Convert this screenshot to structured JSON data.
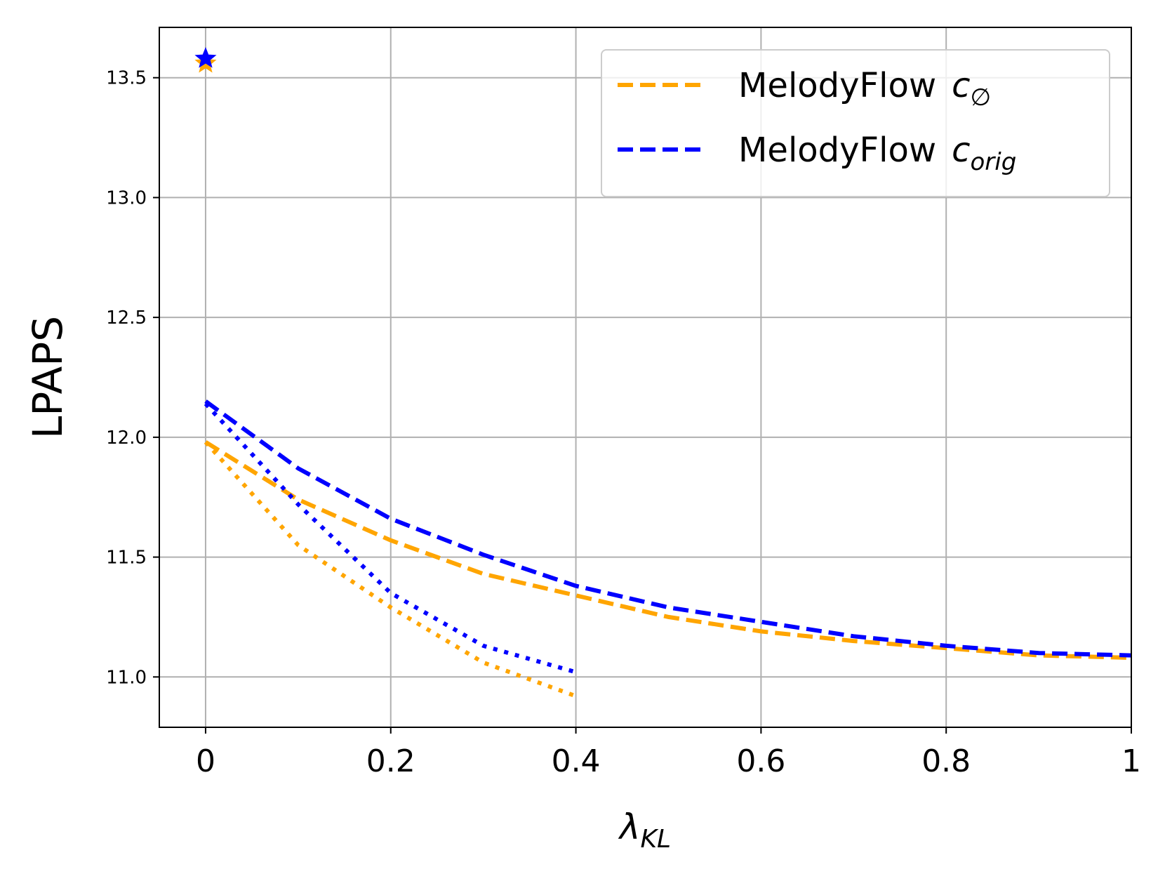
{
  "chart_data": {
    "type": "line",
    "xlabel": "λ",
    "xlabel_sub": "KL",
    "ylabel": "LPAPS",
    "xlim": [
      -0.05,
      1.0
    ],
    "ylim": [
      10.79,
      13.71
    ],
    "grid": true,
    "legend_position": "top-right",
    "xticks": [
      0,
      0.2,
      0.4,
      0.6,
      0.8,
      1.0
    ],
    "xtick_labels": [
      "0",
      "0.2",
      "0.4",
      "0.6",
      "0.8",
      "1"
    ],
    "yticks": [
      11.0,
      11.5,
      12.0,
      12.5,
      13.0,
      13.5
    ],
    "ytick_labels": [
      "11.0",
      "11.5",
      "12.0",
      "12.5",
      "13.0",
      "13.5"
    ],
    "series": [
      {
        "name": "MelodyFlow",
        "name_math": "c",
        "name_sub": "∅",
        "color": "#FFA500",
        "style": "dashed",
        "in_legend": true,
        "x": [
          0,
          0.1,
          0.2,
          0.3,
          0.4,
          0.5,
          0.6,
          0.7,
          0.8,
          0.9,
          1.0
        ],
        "y": [
          11.98,
          11.74,
          11.57,
          11.43,
          11.34,
          11.25,
          11.19,
          11.15,
          11.12,
          11.09,
          11.08
        ]
      },
      {
        "name": "MelodyFlow",
        "name_math": "c",
        "name_sub": "orig",
        "color": "#0000FF",
        "style": "dashed",
        "in_legend": true,
        "x": [
          0,
          0.1,
          0.2,
          0.3,
          0.4,
          0.5,
          0.6,
          0.7,
          0.8,
          0.9,
          1.0
        ],
        "y": [
          12.15,
          11.87,
          11.66,
          11.51,
          11.38,
          11.29,
          11.23,
          11.17,
          11.13,
          11.1,
          11.09
        ]
      },
      {
        "color": "#FFA500",
        "style": "dotted",
        "in_legend": false,
        "x": [
          0,
          0.1,
          0.2,
          0.3,
          0.4
        ],
        "y": [
          11.98,
          11.55,
          11.29,
          11.06,
          10.92
        ]
      },
      {
        "color": "#0000FF",
        "style": "dotted",
        "in_legend": false,
        "x": [
          0,
          0.1,
          0.2,
          0.3,
          0.4
        ],
        "y": [
          12.14,
          11.72,
          11.35,
          11.13,
          11.02
        ]
      }
    ],
    "markers": [
      {
        "color": "#FFA500",
        "shape": "star",
        "x": 0,
        "y": 13.56
      },
      {
        "color": "#0000FF",
        "shape": "star",
        "x": 0,
        "y": 13.58
      }
    ]
  }
}
